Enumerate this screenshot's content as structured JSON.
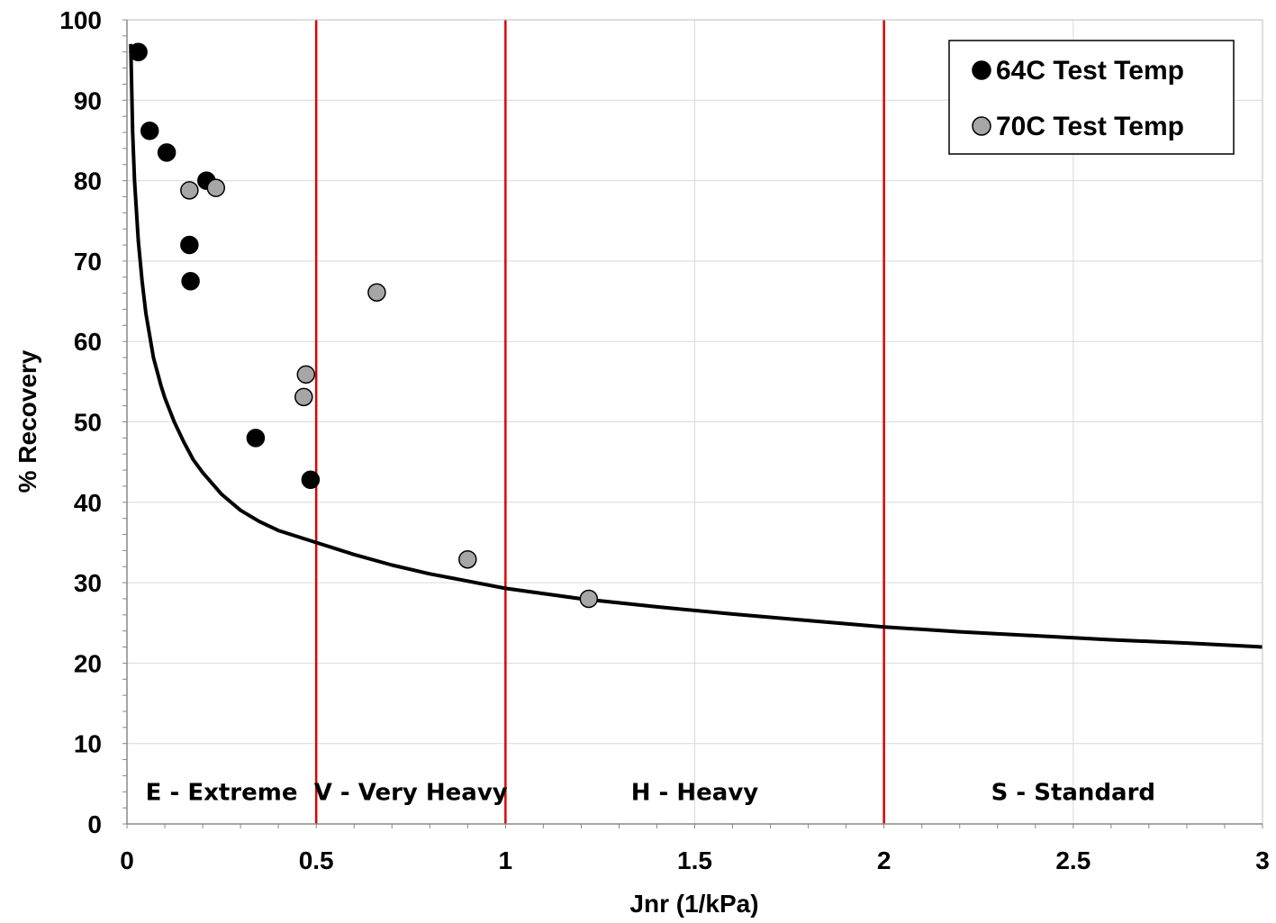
{
  "chart_data": {
    "type": "scatter",
    "xlabel": "Jnr (1/kPa)",
    "ylabel": "% Recovery",
    "xlim": [
      0,
      3
    ],
    "ylim": [
      0,
      100
    ],
    "x_ticks": [
      "0",
      "0.5",
      "1",
      "1.5",
      "2",
      "2.5",
      "3"
    ],
    "x_tick_values": [
      0,
      0.5,
      1,
      1.5,
      2,
      2.5,
      3
    ],
    "y_ticks": [
      "0",
      "10",
      "20",
      "30",
      "40",
      "50",
      "60",
      "70",
      "80",
      "90",
      "100"
    ],
    "y_tick_values": [
      0,
      10,
      20,
      30,
      40,
      50,
      60,
      70,
      80,
      90,
      100
    ],
    "grid": true,
    "legend_position": "top-right",
    "series": [
      {
        "name": "64C Test Temp",
        "color": "#000000",
        "points": [
          {
            "x": 0.03,
            "y": 96.0
          },
          {
            "x": 0.06,
            "y": 86.2
          },
          {
            "x": 0.105,
            "y": 83.5
          },
          {
            "x": 0.21,
            "y": 80.0
          },
          {
            "x": 0.165,
            "y": 72.0
          },
          {
            "x": 0.168,
            "y": 67.5
          },
          {
            "x": 0.34,
            "y": 48.0
          },
          {
            "x": 0.485,
            "y": 42.8
          }
        ]
      },
      {
        "name": "70C Test Temp",
        "color": "#a6a6a6",
        "points": [
          {
            "x": 0.165,
            "y": 78.8
          },
          {
            "x": 0.235,
            "y": 79.1
          },
          {
            "x": 0.66,
            "y": 66.1
          },
          {
            "x": 0.473,
            "y": 55.9
          },
          {
            "x": 0.467,
            "y": 53.1
          },
          {
            "x": 0.9,
            "y": 32.9
          },
          {
            "x": 1.22,
            "y": 28.0
          }
        ]
      }
    ],
    "curve": {
      "color": "#000000",
      "points": [
        [
          0.01,
          97.0
        ],
        [
          0.015,
          86.0
        ],
        [
          0.02,
          80.0
        ],
        [
          0.03,
          72.5
        ],
        [
          0.04,
          67.5
        ],
        [
          0.05,
          63.5
        ],
        [
          0.07,
          58.0
        ],
        [
          0.09,
          54.5
        ],
        [
          0.1,
          53.0
        ],
        [
          0.125,
          50.0
        ],
        [
          0.15,
          47.5
        ],
        [
          0.175,
          45.3
        ],
        [
          0.2,
          43.7
        ],
        [
          0.25,
          41.0
        ],
        [
          0.3,
          39.0
        ],
        [
          0.35,
          37.6
        ],
        [
          0.4,
          36.5
        ],
        [
          0.5,
          35.0
        ],
        [
          0.6,
          33.5
        ],
        [
          0.7,
          32.2
        ],
        [
          0.8,
          31.1
        ],
        [
          0.9,
          30.2
        ],
        [
          1.0,
          29.3
        ],
        [
          1.2,
          28.0
        ],
        [
          1.4,
          27.0
        ],
        [
          1.6,
          26.1
        ],
        [
          1.8,
          25.3
        ],
        [
          2.0,
          24.5
        ],
        [
          2.2,
          23.9
        ],
        [
          2.4,
          23.4
        ],
        [
          2.6,
          22.9
        ],
        [
          2.8,
          22.5
        ],
        [
          3.0,
          22.0
        ]
      ]
    },
    "vertical_lines": {
      "color": "#e00000",
      "x": [
        0.5,
        1,
        2
      ]
    },
    "regions": [
      {
        "label": "E - Extreme",
        "x": 0.25
      },
      {
        "label": "V - Very Heavy",
        "x": 0.75
      },
      {
        "label": "H - Heavy",
        "x": 1.5
      },
      {
        "label": "S - Standard",
        "x": 2.5
      }
    ],
    "region_label_y": 4.0
  }
}
